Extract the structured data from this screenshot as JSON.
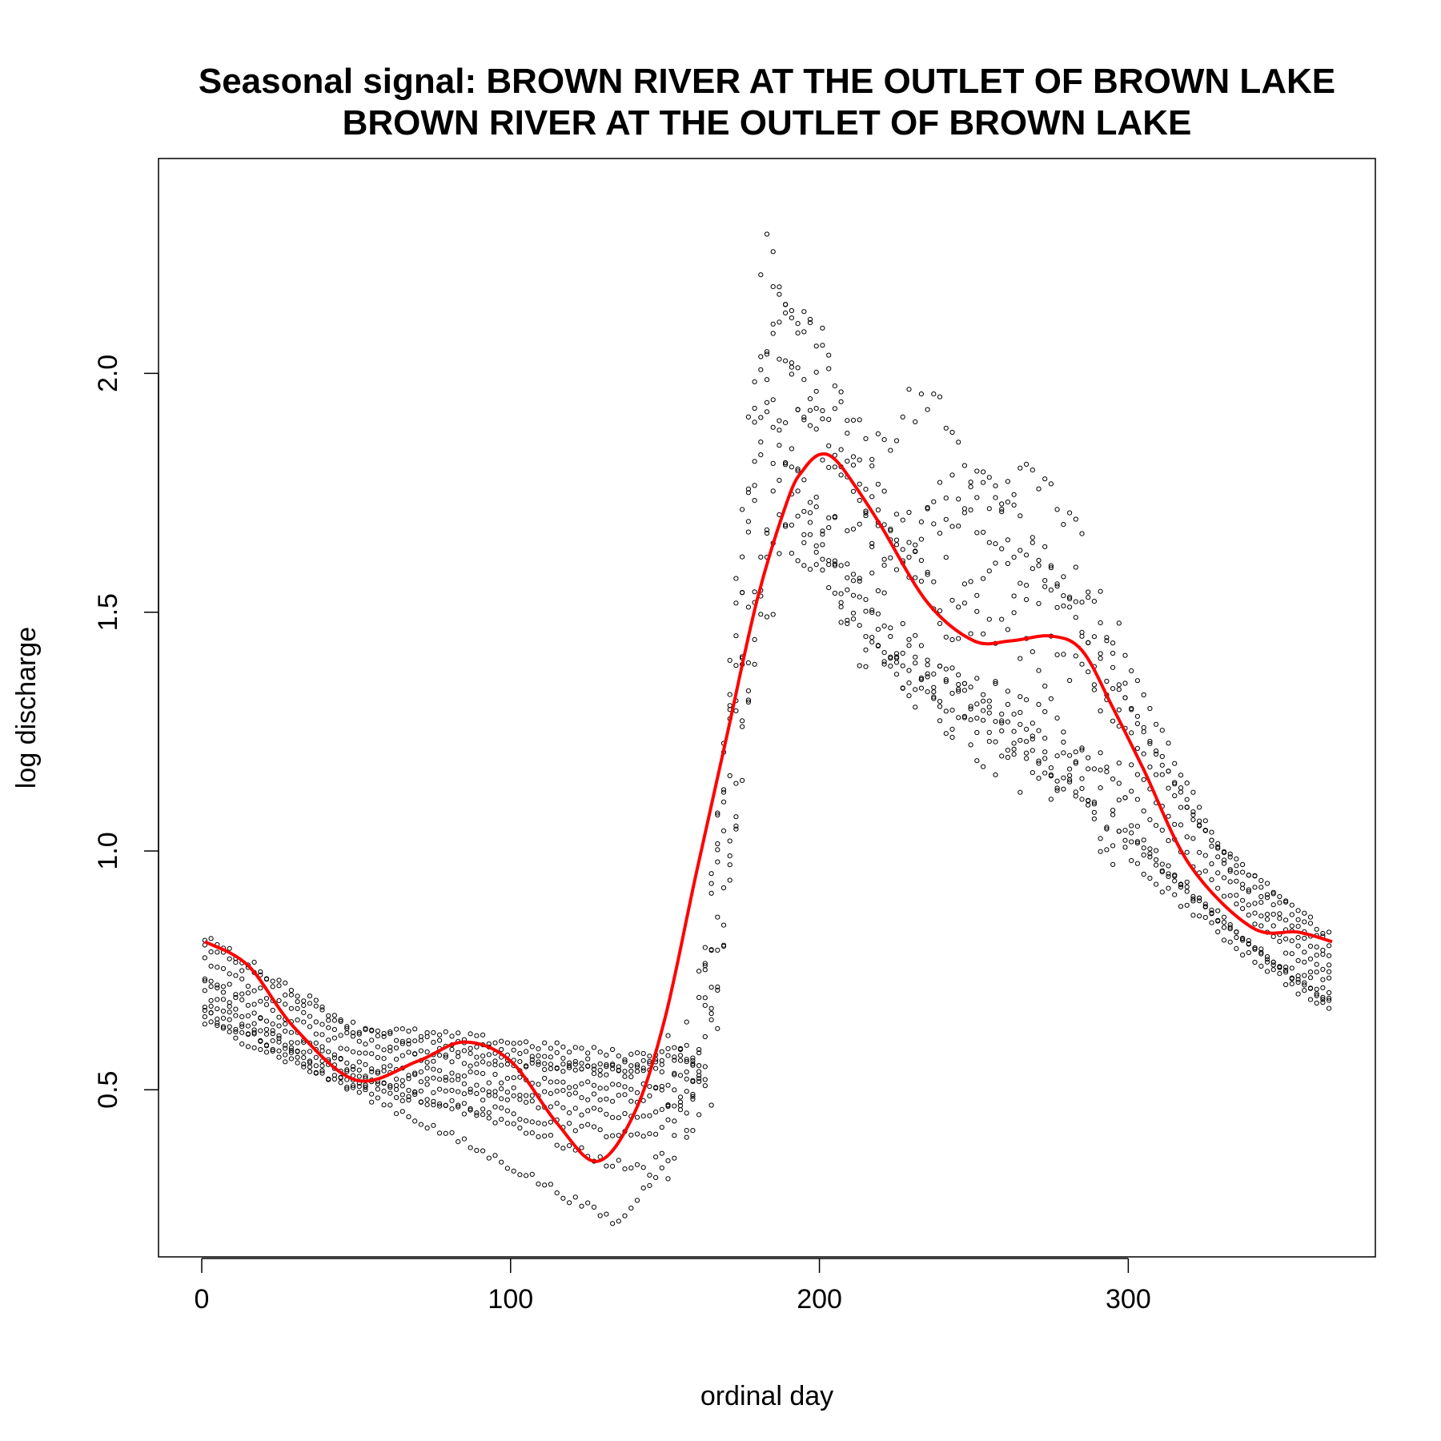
{
  "chart_data": {
    "type": "scatter",
    "title": "Seasonal signal: BROWN RIVER AT THE OUTLET OF BROWN LAKE",
    "subtitle": "BROWN RIVER AT THE OUTLET OF BROWN LAKE",
    "xlabel": "ordinal day",
    "ylabel": "log discharge",
    "xlim": [
      -14,
      380
    ],
    "ylim": [
      0.15,
      2.45
    ],
    "xticks": [
      0,
      100,
      200,
      300
    ],
    "yticks": [
      0.5,
      1.0,
      1.5,
      2.0
    ],
    "xtick_labels": [
      "0",
      "100",
      "200",
      "300"
    ],
    "ytick_labels": [
      "0.5",
      "1.0",
      "1.5",
      "2.0"
    ],
    "grid": false,
    "legend": "none",
    "colors": {
      "points": "#000000",
      "fit": "#ff0000"
    },
    "fit_line": {
      "name": "",
      "x": [
        1,
        15,
        30,
        50,
        70,
        85,
        100,
        115,
        128,
        140,
        150,
        160,
        170,
        180,
        190,
        195,
        200,
        205,
        212,
        220,
        235,
        250,
        262,
        275,
        285,
        295,
        305,
        320,
        340,
        355,
        366
      ],
      "y": [
        0.81,
        0.76,
        0.63,
        0.52,
        0.56,
        0.6,
        0.56,
        0.43,
        0.35,
        0.45,
        0.65,
        0.95,
        1.24,
        1.53,
        1.74,
        1.8,
        1.83,
        1.82,
        1.76,
        1.68,
        1.52,
        1.44,
        1.44,
        1.45,
        1.42,
        1.3,
        1.17,
        0.97,
        0.84,
        0.83,
        0.81
      ]
    },
    "series_profiles": [
      {
        "x": [
          1,
          50,
          100,
          140,
          162,
          172,
          182,
          195,
          205,
          225,
          250,
          275,
          300,
          330,
          366
        ],
        "y": [
          0.8,
          0.62,
          0.58,
          0.55,
          0.58,
          1.0,
          2.3,
          1.9,
          1.75,
          1.6,
          1.8,
          1.6,
          1.3,
          1.0,
          0.8
        ]
      },
      {
        "x": [
          1,
          50,
          100,
          140,
          160,
          170,
          180,
          195,
          210,
          230,
          255,
          280,
          305,
          335,
          366
        ],
        "y": [
          0.77,
          0.6,
          0.56,
          0.53,
          0.56,
          1.3,
          2.1,
          1.95,
          1.8,
          1.65,
          1.7,
          1.5,
          1.2,
          0.95,
          0.78
        ]
      },
      {
        "x": [
          1,
          50,
          100,
          140,
          163,
          175,
          185,
          200,
          215,
          235,
          260,
          282,
          305,
          335,
          366
        ],
        "y": [
          0.74,
          0.58,
          0.55,
          0.54,
          0.57,
          1.6,
          2.2,
          2.05,
          1.75,
          1.55,
          1.6,
          1.55,
          1.25,
          0.93,
          0.76
        ]
      },
      {
        "x": [
          1,
          50,
          100,
          140,
          165,
          178,
          190,
          205,
          220,
          240,
          262,
          285,
          310,
          340,
          366
        ],
        "y": [
          0.72,
          0.55,
          0.52,
          0.5,
          0.52,
          1.4,
          2.0,
          1.85,
          1.65,
          1.5,
          1.45,
          1.35,
          1.1,
          0.88,
          0.74
        ]
      },
      {
        "x": [
          1,
          50,
          100,
          140,
          158,
          168,
          180,
          192,
          210,
          230,
          258,
          285,
          310,
          340,
          366
        ],
        "y": [
          0.7,
          0.54,
          0.5,
          0.48,
          0.52,
          1.1,
          1.95,
          1.8,
          1.6,
          1.4,
          1.3,
          1.25,
          1.05,
          0.85,
          0.72
        ]
      },
      {
        "x": [
          1,
          50,
          100,
          140,
          160,
          172,
          183,
          198,
          212,
          232,
          255,
          280,
          305,
          335,
          366
        ],
        "y": [
          0.68,
          0.52,
          0.48,
          0.44,
          0.47,
          1.5,
          1.9,
          1.7,
          1.5,
          1.35,
          1.32,
          1.2,
          1.0,
          0.82,
          0.7
        ]
      },
      {
        "x": [
          1,
          50,
          100,
          140,
          162,
          174,
          186,
          200,
          218,
          240,
          265,
          290,
          315,
          340,
          366
        ],
        "y": [
          0.66,
          0.5,
          0.45,
          0.4,
          0.45,
          1.2,
          1.85,
          1.65,
          1.45,
          1.3,
          1.25,
          1.15,
          0.95,
          0.8,
          0.68
        ]
      },
      {
        "x": [
          1,
          50,
          100,
          130,
          145,
          160,
          172,
          185,
          200,
          225,
          255,
          280,
          305,
          335,
          366
        ],
        "y": [
          0.66,
          0.52,
          0.43,
          0.35,
          0.33,
          0.5,
          1.3,
          1.7,
          1.55,
          1.35,
          1.2,
          1.15,
          1.0,
          0.82,
          0.68
        ]
      },
      {
        "x": [
          1,
          50,
          100,
          120,
          135,
          150,
          165,
          178,
          192,
          215,
          245,
          270,
          300,
          335,
          366
        ],
        "y": [
          0.64,
          0.5,
          0.34,
          0.27,
          0.22,
          0.35,
          0.6,
          1.4,
          1.7,
          1.5,
          1.3,
          1.2,
          0.98,
          0.8,
          0.66
        ]
      },
      {
        "x": [
          1,
          50,
          100,
          140,
          160,
          172,
          185,
          200,
          215,
          235,
          255,
          272,
          295,
          330,
          366
        ],
        "y": [
          0.82,
          0.63,
          0.6,
          0.57,
          0.6,
          1.2,
          2.15,
          2.05,
          1.85,
          1.95,
          1.75,
          1.82,
          1.45,
          1.0,
          0.82
        ]
      }
    ]
  }
}
